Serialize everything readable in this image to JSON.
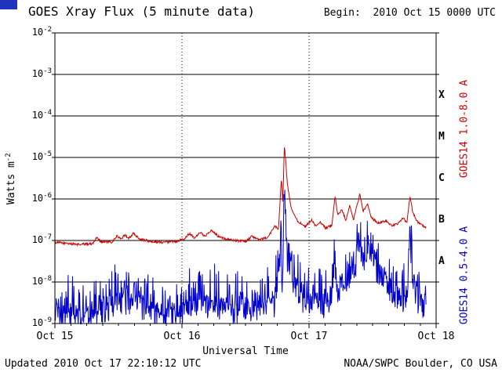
{
  "header": {
    "title": "GOES Xray Flux (5 minute data)",
    "begin_label": "Begin:  2010 Oct 15 0000 UTC"
  },
  "axes": {
    "ylabel_base": "Watts m",
    "ylabel_exp": "-2",
    "xlabel": "Universal Time"
  },
  "footer": {
    "updated": "Updated 2010 Oct 17 22:10:12 UTC",
    "credit": "NOAA/SWPC Boulder, CO USA"
  },
  "chart_data": {
    "type": "line",
    "title": "GOES Xray Flux (5 minute data)",
    "xlabel": "Universal Time",
    "ylabel": "Watts m^-2",
    "x_unit": "days since 2010 Oct 15 0000 UTC",
    "x_range": [
      0,
      3
    ],
    "data_end": 2.922,
    "sample_interval_min": 5,
    "ylim": [
      1e-09,
      0.01
    ],
    "yticks_exponents": [
      -2,
      -3,
      -4,
      -5,
      -6,
      -7,
      -8,
      -9
    ],
    "xticks": [
      {
        "t": 0,
        "label": "Oct 15"
      },
      {
        "t": 1,
        "label": "Oct 16"
      },
      {
        "t": 2,
        "label": "Oct 17"
      },
      {
        "t": 3,
        "label": "Oct 18"
      }
    ],
    "grid": {
      "horizontal_log": [
        -3,
        -4,
        -5,
        -6,
        -7,
        -8
      ],
      "vertical_days": [
        1,
        2
      ]
    },
    "flare_classes": [
      {
        "label": "X",
        "center_log": -3.5
      },
      {
        "label": "M",
        "center_log": -4.5
      },
      {
        "label": "C",
        "center_log": -5.5
      },
      {
        "label": "B",
        "center_log": -6.5
      },
      {
        "label": "A",
        "center_log": -7.5
      }
    ],
    "series": [
      {
        "name": "GOES14 1.0-8.0 A",
        "color": "#cc0000",
        "seed": 1234,
        "noise_log_jitter": 0.028,
        "spike_amp": 0,
        "spike_pow": 1,
        "sample_minutes": 5,
        "control_points": [
          [
            0.0,
            9e-08
          ],
          [
            0.1,
            8.5e-08
          ],
          [
            0.2,
            8e-08
          ],
          [
            0.3,
            8.5e-08
          ],
          [
            0.33,
            1.2e-07
          ],
          [
            0.36,
            9.5e-08
          ],
          [
            0.45,
            9e-08
          ],
          [
            0.49,
            1.3e-07
          ],
          [
            0.52,
            1.05e-07
          ],
          [
            0.55,
            1.4e-07
          ],
          [
            0.58,
            1.1e-07
          ],
          [
            0.62,
            1.5e-07
          ],
          [
            0.66,
            1.1e-07
          ],
          [
            0.75,
            9.5e-08
          ],
          [
            0.85,
            9e-08
          ],
          [
            0.95,
            9.5e-08
          ],
          [
            1.02,
            1.1e-07
          ],
          [
            1.06,
            1.5e-07
          ],
          [
            1.1,
            1.15e-07
          ],
          [
            1.14,
            1.6e-07
          ],
          [
            1.18,
            1.25e-07
          ],
          [
            1.23,
            1.8e-07
          ],
          [
            1.28,
            1.3e-07
          ],
          [
            1.34,
            1.1e-07
          ],
          [
            1.42,
            1e-07
          ],
          [
            1.5,
            9.5e-08
          ],
          [
            1.55,
            1.25e-07
          ],
          [
            1.6,
            1.05e-07
          ],
          [
            1.68,
            1.2e-07
          ],
          [
            1.73,
            2.3e-07
          ],
          [
            1.76,
            1.9e-07
          ],
          [
            1.783,
            3.5e-06
          ],
          [
            1.793,
            7e-07
          ],
          [
            1.806,
            1.9e-05
          ],
          [
            1.814,
            1e-05
          ],
          [
            1.83,
            2.2e-06
          ],
          [
            1.86,
            6e-07
          ],
          [
            1.91,
            3e-07
          ],
          [
            1.97,
            2.1e-07
          ],
          [
            2.02,
            3.2e-07
          ],
          [
            2.05,
            2.2e-07
          ],
          [
            2.09,
            2.7e-07
          ],
          [
            2.13,
            2e-07
          ],
          [
            2.18,
            2.3e-07
          ],
          [
            2.205,
            1.15e-06
          ],
          [
            2.225,
            4e-07
          ],
          [
            2.26,
            5.5e-07
          ],
          [
            2.29,
            3e-07
          ],
          [
            2.32,
            7e-07
          ],
          [
            2.35,
            3.2e-07
          ],
          [
            2.4,
            1.3e-06
          ],
          [
            2.425,
            5e-07
          ],
          [
            2.46,
            8e-07
          ],
          [
            2.49,
            3.5e-07
          ],
          [
            2.55,
            2.6e-07
          ],
          [
            2.6,
            3e-07
          ],
          [
            2.65,
            2.3e-07
          ],
          [
            2.7,
            2.5e-07
          ],
          [
            2.74,
            3.6e-07
          ],
          [
            2.77,
            2.6e-07
          ],
          [
            2.795,
            1.2e-06
          ],
          [
            2.815,
            5e-07
          ],
          [
            2.85,
            2.9e-07
          ],
          [
            2.9,
            2.2e-07
          ],
          [
            2.922,
            2.1e-07
          ]
        ]
      },
      {
        "name": "GOES14 0.5-4.0 A",
        "color": "#0000cc",
        "seed": 5678,
        "noise_log_jitter": 0.3,
        "spike_amp": 0.9,
        "spike_pow": 4,
        "sample_minutes": 5,
        "control_points": [
          [
            0.0,
            1.5e-09
          ],
          [
            0.2,
            1.4e-09
          ],
          [
            0.35,
            1.7e-09
          ],
          [
            0.48,
            2.6e-09
          ],
          [
            0.55,
            3.2e-09
          ],
          [
            0.65,
            2.8e-09
          ],
          [
            0.75,
            1.8e-09
          ],
          [
            0.9,
            1.3e-09
          ],
          [
            1.0,
            1.6e-09
          ],
          [
            1.08,
            2.4e-09
          ],
          [
            1.18,
            2.6e-09
          ],
          [
            1.28,
            2.2e-09
          ],
          [
            1.38,
            1.8e-09
          ],
          [
            1.48,
            1.7e-09
          ],
          [
            1.56,
            2.3e-09
          ],
          [
            1.66,
            2.1e-09
          ],
          [
            1.73,
            2.6e-09
          ],
          [
            1.778,
            7e-08
          ],
          [
            1.79,
            7e-09
          ],
          [
            1.806,
            8e-07
          ],
          [
            1.816,
            2.5e-07
          ],
          [
            1.83,
            2.5e-08
          ],
          [
            1.87,
            7e-09
          ],
          [
            1.93,
            4e-09
          ],
          [
            2.0,
            2.6e-09
          ],
          [
            2.06,
            3.2e-09
          ],
          [
            2.12,
            2.6e-09
          ],
          [
            2.18,
            3e-09
          ],
          [
            2.205,
            2.4e-08
          ],
          [
            2.225,
            6e-09
          ],
          [
            2.3,
            8e-09
          ],
          [
            2.36,
            2e-08
          ],
          [
            2.4,
            4.5e-08
          ],
          [
            2.44,
            2.8e-08
          ],
          [
            2.47,
            4e-08
          ],
          [
            2.52,
            2.2e-08
          ],
          [
            2.58,
            1.2e-08
          ],
          [
            2.65,
            5e-09
          ],
          [
            2.72,
            3.5e-09
          ],
          [
            2.77,
            3e-09
          ],
          [
            2.795,
            9e-08
          ],
          [
            2.815,
            1.1e-08
          ],
          [
            2.86,
            3e-09
          ],
          [
            2.922,
            2.2e-09
          ]
        ]
      }
    ]
  }
}
